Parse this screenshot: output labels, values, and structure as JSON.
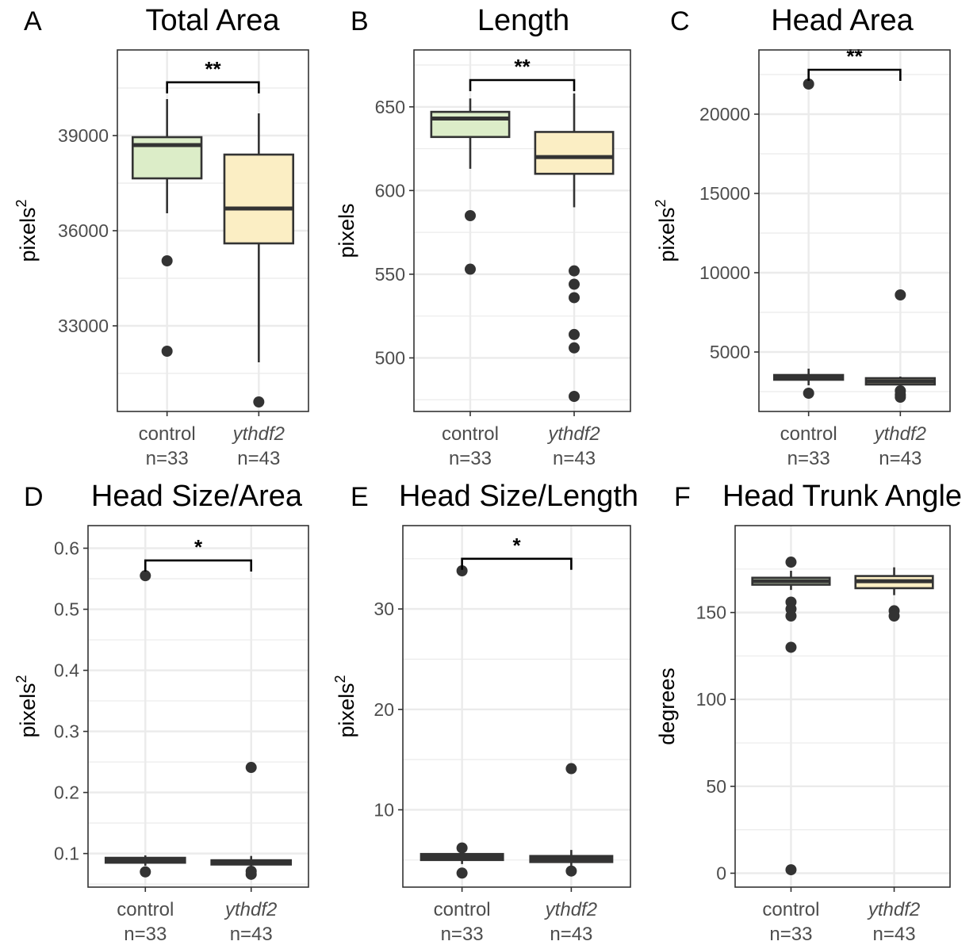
{
  "colors": {
    "control": "#dcedc8",
    "ythdf2": "#fbeec4",
    "stroke": "#333333",
    "grid": "#ebebeb",
    "panel_border": "#333333"
  },
  "categories": [
    {
      "label": "control",
      "n": "n=33",
      "italic": false
    },
    {
      "label": "ythdf2",
      "n": "n=43",
      "italic": true
    }
  ],
  "chart_data": [
    {
      "type": "box",
      "panel": "A",
      "title": "Total Area",
      "ylabel": "pixels",
      "ylabel_sup": "2",
      "ylim": [
        30300,
        41700
      ],
      "yticks": [
        33000,
        36000,
        39000
      ],
      "yticklabels": [
        "33000",
        "36000",
        "39000"
      ],
      "boxes": [
        {
          "q1": 37650,
          "median": 38700,
          "q3": 38950,
          "whisker_low": 36550,
          "whisker_high": 40150,
          "outliers": [
            35050,
            32200
          ]
        },
        {
          "q1": 35600,
          "median": 36700,
          "q3": 38400,
          "whisker_low": 31850,
          "whisker_high": 39700,
          "outliers": [
            30600
          ]
        }
      ],
      "significance": "**",
      "bracket_y": 40680
    },
    {
      "type": "box",
      "panel": "B",
      "title": "Length",
      "ylabel": "pixels",
      "ylabel_sup": "",
      "ylim": [
        468,
        684
      ],
      "yticks": [
        500,
        550,
        600,
        650
      ],
      "yticklabels": [
        "500",
        "550",
        "600",
        "650"
      ],
      "boxes": [
        {
          "q1": 632,
          "median": 643,
          "q3": 647,
          "whisker_low": 613,
          "whisker_high": 655,
          "outliers": [
            585,
            553
          ]
        },
        {
          "q1": 610,
          "median": 620,
          "q3": 635,
          "whisker_low": 590,
          "whisker_high": 658,
          "outliers": [
            552,
            544,
            536,
            514,
            506,
            477
          ]
        }
      ],
      "significance": "**",
      "bracket_y": 666
    },
    {
      "type": "box",
      "panel": "C",
      "title": "Head Area",
      "ylabel": "pixels",
      "ylabel_sup": "2",
      "ylim": [
        1250,
        24050
      ],
      "yticks": [
        5000,
        10000,
        15000,
        20000
      ],
      "yticklabels": [
        "5000",
        "10000",
        "15000",
        "20000"
      ],
      "boxes": [
        {
          "q1": 3250,
          "median": 3400,
          "q3": 3550,
          "whisker_low": 2900,
          "whisker_high": 3950,
          "outliers": [
            21900,
            2400
          ]
        },
        {
          "q1": 2950,
          "median": 3150,
          "q3": 3350,
          "whisker_low": 2700,
          "whisker_high": 3450,
          "outliers": [
            8600,
            2550,
            2300,
            2150
          ]
        }
      ],
      "significance": "**",
      "bracket_y": 22800
    },
    {
      "type": "box",
      "panel": "D",
      "title": "Head Size/Area",
      "ylabel": "pixels",
      "ylabel_sup": "2",
      "ylim": [
        0.045,
        0.637
      ],
      "yticks": [
        0.1,
        0.2,
        0.3,
        0.4,
        0.5,
        0.6
      ],
      "yticklabels": [
        "0.1",
        "0.2",
        "0.3",
        "0.4",
        "0.5",
        "0.6"
      ],
      "boxes": [
        {
          "q1": 0.085,
          "median": 0.089,
          "q3": 0.093,
          "whisker_low": 0.08,
          "whisker_high": 0.097,
          "outliers": [
            0.555,
            0.07
          ]
        },
        {
          "q1": 0.082,
          "median": 0.086,
          "q3": 0.089,
          "whisker_low": 0.078,
          "whisker_high": 0.096,
          "outliers": [
            0.241,
            0.071,
            0.066
          ]
        }
      ],
      "significance": "*",
      "bracket_y": 0.58
    },
    {
      "type": "box",
      "panel": "E",
      "title": "Head Size/Length",
      "ylabel": "pixels",
      "ylabel_sup": "2",
      "ylim": [
        2.3,
        38.3
      ],
      "yticks": [
        10,
        20,
        30
      ],
      "yticklabels": [
        "10",
        "20",
        "30"
      ],
      "boxes": [
        {
          "q1": 5.0,
          "median": 5.3,
          "q3": 5.6,
          "whisker_low": 4.6,
          "whisker_high": 6.2,
          "outliers": [
            33.8,
            6.2,
            3.7
          ]
        },
        {
          "q1": 4.8,
          "median": 5.1,
          "q3": 5.4,
          "whisker_low": 4.4,
          "whisker_high": 6.0,
          "outliers": [
            14.1,
            3.9
          ]
        }
      ],
      "significance": "*",
      "bracket_y": 35.0
    },
    {
      "type": "box",
      "panel": "F",
      "title": "Head Trunk Angle",
      "ylabel": "degrees",
      "ylabel_sup": "",
      "ylim": [
        -8,
        200
      ],
      "yticks": [
        0,
        50,
        100,
        150
      ],
      "yticklabels": [
        "0",
        "50",
        "100",
        "150"
      ],
      "boxes": [
        {
          "q1": 166,
          "median": 168,
          "q3": 170,
          "whisker_low": 163,
          "whisker_high": 174,
          "outliers": [
            179,
            156,
            152,
            148,
            130,
            2
          ]
        },
        {
          "q1": 164,
          "median": 168,
          "q3": 171,
          "whisker_low": 160,
          "whisker_high": 176,
          "outliers": [
            151,
            148
          ]
        }
      ],
      "significance": "",
      "bracket_y": null
    }
  ]
}
